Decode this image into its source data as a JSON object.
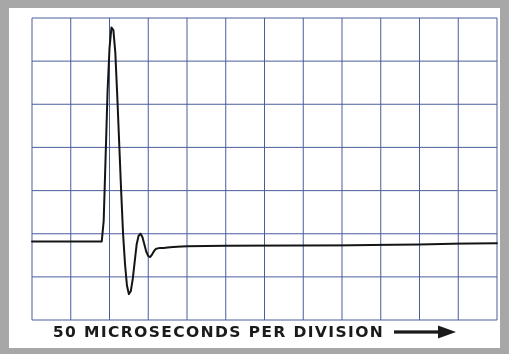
{
  "chart_data": {
    "type": "line",
    "xlabel": "50 MICROSECONDS PER DIVISION",
    "x_unit_note": "divisions",
    "ylabel": "",
    "title": "",
    "grid": true,
    "x_divisions": 12,
    "y_divisions": 7,
    "xlim": [
      0,
      12
    ],
    "ylim": [
      0,
      7
    ],
    "series": [
      {
        "x": [
          0,
          1.8,
          1.85,
          1.9,
          1.95,
          2.0,
          2.05,
          2.1,
          2.15,
          2.2,
          2.25,
          2.3,
          2.35,
          2.4,
          2.45,
          2.5,
          2.55,
          2.6,
          2.65,
          2.7,
          2.75,
          2.8,
          2.85,
          2.9,
          2.95,
          3.0,
          3.05,
          3.1,
          3.15,
          3.2,
          3.3,
          3.4,
          3.5,
          3.6,
          3.8,
          4.0,
          5.0,
          8.0,
          10.0,
          11.0,
          12.0
        ],
        "y": [
          1.82,
          1.82,
          2.3,
          3.8,
          5.3,
          6.3,
          6.78,
          6.72,
          6.2,
          5.2,
          4.1,
          3.0,
          2.0,
          1.3,
          0.8,
          0.6,
          0.67,
          0.95,
          1.35,
          1.75,
          1.95,
          2.0,
          1.92,
          1.75,
          1.58,
          1.48,
          1.46,
          1.52,
          1.6,
          1.65,
          1.67,
          1.67,
          1.68,
          1.69,
          1.7,
          1.71,
          1.72,
          1.73,
          1.75,
          1.77,
          1.78
        ]
      }
    ]
  },
  "caption": {
    "text": "50 MICROSECONDS PER DIVISION"
  },
  "colors": {
    "frame": "#a7a7a7",
    "grid": "#4a5d9b",
    "trace": "#141414",
    "background": "#ffffff"
  },
  "icons": {
    "caption_arrow": "right-arrow-icon"
  }
}
